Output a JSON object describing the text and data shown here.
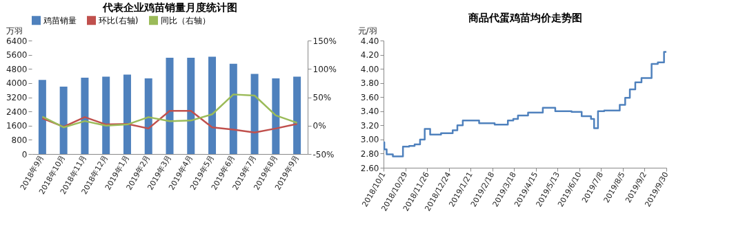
{
  "chart_data": [
    {
      "type": "bar",
      "title": "代表企业鸡苗销量月度统计图",
      "ylabel": "万羽",
      "categories": [
        "2018年9月",
        "2018年10月",
        "2018年11月",
        "2018年12月",
        "2019年1月",
        "2019年2月",
        "2019年3月",
        "2019年4月",
        "2019年5月",
        "2019年6月",
        "2019年7月",
        "2019年8月",
        "2019年9月"
      ],
      "series": [
        {
          "name": "鸡苗销量",
          "color": "#4f81bd",
          "values": [
            4180,
            3800,
            4310,
            4360,
            4480,
            4270,
            5430,
            5430,
            5490,
            5090,
            4520,
            4270,
            4360
          ]
        },
        {
          "name": "环比(右轴)",
          "type": "line",
          "axis": "y2",
          "color": "#c0504d",
          "values": [
            13,
            -2,
            15,
            2,
            3,
            -5,
            26,
            26,
            -3,
            -7,
            -12,
            -5,
            3
          ]
        },
        {
          "name": "同比（右轴）",
          "type": "line",
          "axis": "y2",
          "color": "#9bbb59",
          "values": [
            16,
            -3,
            8,
            0,
            2,
            15,
            8,
            9,
            20,
            55,
            53,
            18,
            5
          ]
        }
      ],
      "ylim": [
        0,
        6400
      ],
      "yticks": [
        0,
        800,
        1600,
        2400,
        3200,
        4000,
        4800,
        5600,
        6400
      ],
      "y2lim": [
        -50,
        150
      ],
      "y2ticks": [
        {
          "value": -50,
          "label": "-50%"
        },
        {
          "value": 0,
          "label": "0%"
        },
        {
          "value": 50,
          "label": "50%"
        },
        {
          "value": 100,
          "label": "100%"
        },
        {
          "value": 150,
          "label": "150%"
        }
      ],
      "legend": "top",
      "grid": false
    },
    {
      "type": "step",
      "title": "商品代蛋鸡苗均价走势图",
      "ylabel": "元/羽",
      "x": [
        "2018-10-01",
        "2018-10-02",
        "2018-10-05",
        "2018-10-13",
        "2018-10-26",
        "2018-11-03",
        "2018-11-10",
        "2018-11-17",
        "2018-11-23",
        "2018-11-30",
        "2018-12-14",
        "2018-12-29",
        "2019-01-04",
        "2019-01-11",
        "2019-02-01",
        "2019-02-21",
        "2019-03-10",
        "2019-03-17",
        "2019-03-23",
        "2019-04-05",
        "2019-04-24",
        "2019-05-10",
        "2019-05-31",
        "2019-06-13",
        "2019-06-25",
        "2019-06-29",
        "2019-07-04",
        "2019-07-12",
        "2019-08-01",
        "2019-08-08",
        "2019-08-14",
        "2019-08-21",
        "2019-08-29",
        "2019-09-11",
        "2019-09-19",
        "2019-09-27",
        "2019-09-30"
      ],
      "series": [
        {
          "color": "#4f81bd",
          "values": [
            2.96,
            2.86,
            2.79,
            2.76,
            2.9,
            2.91,
            2.93,
            3.0,
            3.15,
            3.07,
            3.09,
            3.13,
            3.2,
            3.27,
            3.23,
            3.21,
            3.27,
            3.29,
            3.34,
            3.38,
            3.45,
            3.4,
            3.39,
            3.33,
            3.29,
            3.16,
            3.4,
            3.41,
            3.49,
            3.59,
            3.71,
            3.81,
            3.87,
            4.07,
            4.09,
            4.24,
            4.24
          ]
        }
      ],
      "xlim": [
        "2018-10-01",
        "2019-09-30"
      ],
      "xticks": [
        {
          "value": "2018-10-01",
          "label": "2018/10/1"
        },
        {
          "value": "2018-10-29",
          "label": "2018/10/29"
        },
        {
          "value": "2018-11-26",
          "label": "2018/11/26"
        },
        {
          "value": "2018-12-24",
          "label": "2018/12/24"
        },
        {
          "value": "2019-01-21",
          "label": "2019/1/21"
        },
        {
          "value": "2019-02-18",
          "label": "2019/2/18"
        },
        {
          "value": "2019-03-18",
          "label": "2019/3/18"
        },
        {
          "value": "2019-04-15",
          "label": "2019/4/15"
        },
        {
          "value": "2019-05-13",
          "label": "2019/5/13"
        },
        {
          "value": "2019-06-10",
          "label": "2019/6/10"
        },
        {
          "value": "2019-07-08",
          "label": "2019/7/8"
        },
        {
          "value": "2019-08-05",
          "label": "2019/8/5"
        },
        {
          "value": "2019-09-02",
          "label": "2019/9/2"
        },
        {
          "value": "2019-09-30",
          "label": "2019/9/30"
        }
      ],
      "ylim": [
        2.6,
        4.4
      ],
      "yticks": [
        {
          "value": 2.6,
          "label": "2.60"
        },
        {
          "value": 2.8,
          "label": "2.80"
        },
        {
          "value": 3.0,
          "label": "3.00"
        },
        {
          "value": 3.2,
          "label": "3.20"
        },
        {
          "value": 3.4,
          "label": "3.40"
        },
        {
          "value": 3.6,
          "label": "3.60"
        },
        {
          "value": 3.8,
          "label": "3.80"
        },
        {
          "value": 4.0,
          "label": "4.00"
        },
        {
          "value": 4.2,
          "label": "4.20"
        },
        {
          "value": 4.4,
          "label": "4.40"
        }
      ],
      "grid": false,
      "line_style": "solid"
    }
  ]
}
